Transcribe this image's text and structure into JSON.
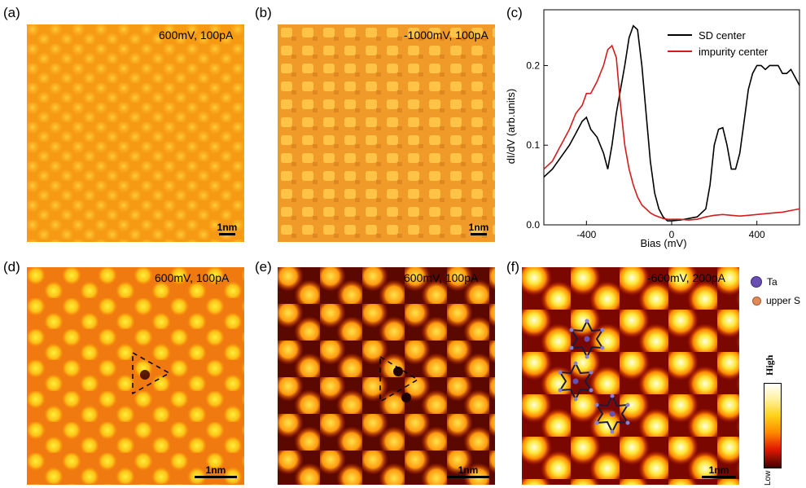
{
  "panels": {
    "a": {
      "label": "(a)",
      "condition": "600mV, 100pA",
      "scale": "1nm"
    },
    "b": {
      "label": "(b)",
      "condition": "-1000mV, 100pA",
      "scale": "1nm"
    },
    "c": {
      "label": "(c)"
    },
    "d": {
      "label": "(d)",
      "condition": "600mV, 100pA",
      "scale": "1nm"
    },
    "e": {
      "label": "(e)",
      "condition": "600mV, 100pA",
      "scale": "1nm"
    },
    "f": {
      "label": "(f)",
      "condition": "-600mV, 200pA",
      "scale": "1nm"
    }
  },
  "legend_f": {
    "ta": "Ta",
    "s": "upper S",
    "ta_color": "#6a4fb0",
    "s_color": "#e08a5a"
  },
  "colorbar": {
    "high": "High",
    "low": "Low"
  },
  "chart_data": {
    "type": "line",
    "xlabel": "Bias (mV)",
    "ylabel": "dI/dV (arb.units)",
    "xlim": [
      -600,
      600
    ],
    "ylim": [
      0,
      0.27
    ],
    "xticks": [
      -400,
      0,
      400
    ],
    "yticks": [
      0.0,
      0.1,
      0.2
    ],
    "legend_position": "top-right",
    "series": [
      {
        "name": "SD center",
        "color": "#000000",
        "x": [
          -600,
          -560,
          -520,
          -480,
          -450,
          -420,
          -400,
          -380,
          -350,
          -320,
          -300,
          -280,
          -260,
          -240,
          -220,
          -200,
          -180,
          -160,
          -140,
          -120,
          -100,
          -80,
          -60,
          -40,
          -20,
          0,
          40,
          80,
          120,
          160,
          180,
          200,
          220,
          240,
          260,
          280,
          300,
          320,
          340,
          360,
          380,
          400,
          420,
          440,
          460,
          480,
          500,
          520,
          540,
          560,
          580,
          600
        ],
        "y": [
          0.06,
          0.07,
          0.085,
          0.1,
          0.115,
          0.13,
          0.135,
          0.12,
          0.11,
          0.09,
          0.07,
          0.1,
          0.14,
          0.17,
          0.2,
          0.235,
          0.25,
          0.245,
          0.2,
          0.14,
          0.08,
          0.04,
          0.02,
          0.01,
          0.005,
          0.005,
          0.006,
          0.008,
          0.01,
          0.02,
          0.05,
          0.1,
          0.12,
          0.122,
          0.1,
          0.07,
          0.07,
          0.09,
          0.13,
          0.17,
          0.19,
          0.2,
          0.2,
          0.195,
          0.2,
          0.2,
          0.2,
          0.19,
          0.19,
          0.195,
          0.185,
          0.175
        ]
      },
      {
        "name": "impurity center",
        "color": "#d41c1c",
        "x": [
          -600,
          -560,
          -520,
          -480,
          -450,
          -420,
          -400,
          -380,
          -350,
          -320,
          -300,
          -280,
          -260,
          -240,
          -220,
          -200,
          -180,
          -160,
          -140,
          -120,
          -100,
          -80,
          -60,
          -40,
          -20,
          0,
          40,
          80,
          120,
          160,
          200,
          240,
          280,
          320,
          360,
          400,
          440,
          480,
          520,
          560,
          600
        ],
        "y": [
          0.07,
          0.08,
          0.1,
          0.12,
          0.14,
          0.15,
          0.165,
          0.165,
          0.18,
          0.2,
          0.22,
          0.225,
          0.21,
          0.15,
          0.1,
          0.07,
          0.05,
          0.035,
          0.025,
          0.02,
          0.015,
          0.012,
          0.01,
          0.008,
          0.007,
          0.007,
          0.007,
          0.006,
          0.007,
          0.01,
          0.012,
          0.013,
          0.012,
          0.011,
          0.012,
          0.013,
          0.014,
          0.015,
          0.016,
          0.018,
          0.02
        ]
      }
    ]
  }
}
